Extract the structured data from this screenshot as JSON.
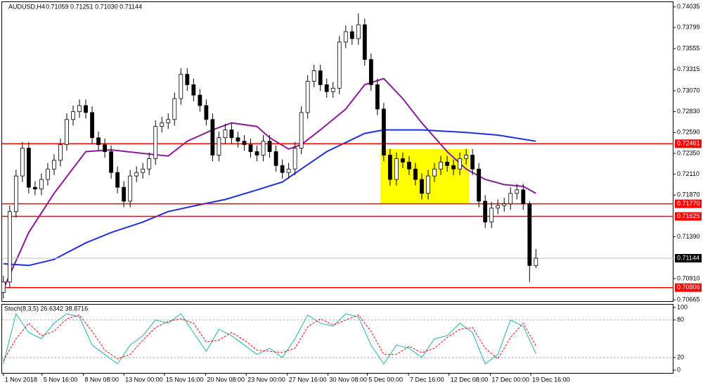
{
  "chart_data": {
    "type": "candlestick",
    "title": "AUDUSD,H4",
    "subtitle": "0.71059 0.71251 0.71030 0.71144",
    "open": [
      0.7075,
      0.7087,
      0.7168,
      0.7209,
      0.7241,
      0.7196,
      0.7194,
      0.7205,
      0.7217,
      0.7227,
      0.7245,
      0.7274,
      0.7283,
      0.729,
      0.7282,
      0.7253,
      0.7245,
      0.7237,
      0.7213,
      0.7196,
      0.718,
      0.7209,
      0.7213,
      0.7217,
      0.7229,
      0.7266,
      0.727,
      0.7274,
      0.7298,
      0.7326,
      0.7314,
      0.7302,
      0.729,
      0.7274,
      0.7233,
      0.7253,
      0.7262,
      0.7253,
      0.7249,
      0.7245,
      0.7237,
      0.7233,
      0.7249,
      0.7237,
      0.7221,
      0.7213,
      0.7217,
      0.7241,
      0.7282,
      0.7318,
      0.733,
      0.7314,
      0.7306,
      0.731,
      0.7363,
      0.7375,
      0.7367,
      0.7383,
      0.7343,
      0.7314,
      0.7286,
      0.7233,
      0.7205,
      0.7229,
      0.7225,
      0.7217,
      0.7205,
      0.7189,
      0.7209,
      0.7217,
      0.7225,
      0.7221,
      0.7217,
      0.7229,
      0.7233,
      0.7217,
      0.718,
      0.7156,
      0.7172,
      0.7175,
      0.7177,
      0.7189,
      0.7193,
      0.7177,
      0.71059
    ],
    "high": [
      0.7094,
      0.7175,
      0.7216,
      0.7248,
      0.7248,
      0.7203,
      0.7212,
      0.7224,
      0.7234,
      0.7252,
      0.7281,
      0.729,
      0.7297,
      0.7297,
      0.7289,
      0.726,
      0.7252,
      0.7244,
      0.722,
      0.7203,
      0.7216,
      0.722,
      0.7224,
      0.7236,
      0.7273,
      0.7277,
      0.7281,
      0.7305,
      0.7333,
      0.7333,
      0.7321,
      0.7309,
      0.7297,
      0.7281,
      0.726,
      0.7269,
      0.7269,
      0.726,
      0.7256,
      0.7252,
      0.7244,
      0.7256,
      0.7256,
      0.7244,
      0.7228,
      0.7224,
      0.7248,
      0.7289,
      0.7325,
      0.7337,
      0.7337,
      0.7321,
      0.7317,
      0.737,
      0.7382,
      0.7382,
      0.7396,
      0.739,
      0.735,
      0.7321,
      0.7293,
      0.724,
      0.7236,
      0.7236,
      0.7232,
      0.7224,
      0.7212,
      0.7216,
      0.7224,
      0.7232,
      0.7232,
      0.7228,
      0.7236,
      0.724,
      0.724,
      0.7224,
      0.7187,
      0.7179,
      0.7182,
      0.7184,
      0.7196,
      0.72,
      0.72,
      0.718,
      0.71251
    ],
    "low": [
      0.7068,
      0.708,
      0.7161,
      0.7202,
      0.7189,
      0.7187,
      0.7187,
      0.7198,
      0.721,
      0.722,
      0.7238,
      0.7267,
      0.7276,
      0.7275,
      0.7246,
      0.7238,
      0.723,
      0.7206,
      0.7189,
      0.7173,
      0.7173,
      0.7202,
      0.7206,
      0.721,
      0.7222,
      0.7259,
      0.7263,
      0.7267,
      0.7291,
      0.7307,
      0.7295,
      0.7283,
      0.7267,
      0.7226,
      0.7226,
      0.7246,
      0.7246,
      0.7242,
      0.7238,
      0.723,
      0.7226,
      0.7226,
      0.723,
      0.7214,
      0.7206,
      0.7206,
      0.721,
      0.7234,
      0.7275,
      0.7311,
      0.7307,
      0.7299,
      0.7299,
      0.7303,
      0.7356,
      0.736,
      0.736,
      0.7336,
      0.7307,
      0.7279,
      0.7226,
      0.7198,
      0.7198,
      0.7218,
      0.721,
      0.7198,
      0.7182,
      0.7182,
      0.7202,
      0.721,
      0.7214,
      0.721,
      0.721,
      0.7222,
      0.721,
      0.7173,
      0.7149,
      0.7149,
      0.7165,
      0.7168,
      0.717,
      0.7182,
      0.717,
      0.7087,
      0.7103
    ],
    "close": [
      0.7087,
      0.7168,
      0.7209,
      0.7241,
      0.7196,
      0.7194,
      0.7205,
      0.7217,
      0.7227,
      0.7245,
      0.7274,
      0.7283,
      0.729,
      0.7282,
      0.7253,
      0.7245,
      0.7237,
      0.7213,
      0.7196,
      0.718,
      0.7209,
      0.7213,
      0.7217,
      0.7229,
      0.7266,
      0.727,
      0.7274,
      0.7298,
      0.7326,
      0.7314,
      0.7302,
      0.729,
      0.7274,
      0.7233,
      0.7253,
      0.7262,
      0.7253,
      0.7249,
      0.7245,
      0.7237,
      0.7233,
      0.7249,
      0.7237,
      0.7221,
      0.7213,
      0.7217,
      0.7241,
      0.7282,
      0.7318,
      0.733,
      0.7314,
      0.7306,
      0.731,
      0.7363,
      0.7375,
      0.7367,
      0.7383,
      0.7343,
      0.7314,
      0.7286,
      0.7233,
      0.7205,
      0.7229,
      0.7225,
      0.7217,
      0.7205,
      0.7189,
      0.7209,
      0.7217,
      0.7225,
      0.7221,
      0.7217,
      0.7229,
      0.7233,
      0.7217,
      0.718,
      0.7156,
      0.7172,
      0.7175,
      0.7177,
      0.7189,
      0.7193,
      0.7177,
      0.7106,
      0.71144
    ],
    "up_color": "#ffffff",
    "down_color": "#000000",
    "candle_color": "#000000",
    "xlim": [
      -0.2,
      105.7
    ],
    "xticks": [
      {
        "value": 0,
        "label": "1 Nov 2018"
      },
      {
        "value": 6.1,
        "label": "5 Nov 16:00"
      },
      {
        "value": 12.6,
        "label": "8 Nov 08:00"
      },
      {
        "value": 19,
        "label": "13 Nov 00:00"
      },
      {
        "value": 25.4,
        "label": "15 Nov 16:00"
      },
      {
        "value": 31.9,
        "label": "20 Nov 08:00"
      },
      {
        "value": 38.3,
        "label": "23 Nov 00:00"
      },
      {
        "value": 44.8,
        "label": "27 Nov 16:00"
      },
      {
        "value": 51.2,
        "label": "30 Nov 08:00"
      },
      {
        "value": 57.4,
        "label": "5 Dec 00:00"
      },
      {
        "value": 63.9,
        "label": "7 Dec 16:00"
      },
      {
        "value": 70.3,
        "label": "12 Dec 08:00"
      },
      {
        "value": 76.8,
        "label": "17 Dec 00:00"
      },
      {
        "value": 83.2,
        "label": "19 Dec 16:00"
      }
    ],
    "ylim": [
      0.7065,
      0.7409
    ],
    "yticks": [
      0.74035,
      0.73799,
      0.73555,
      0.73315,
      {
        "value": 0.7307,
        "label": "0.73070"
      },
      {
        "value": 0.7283,
        "label": "0.72830"
      },
      {
        "value": 0.7259,
        "label": "0.72590"
      },
      {
        "value": 0.7235,
        "label": "0.72350"
      },
      {
        "value": 0.7211,
        "label": "0.72110"
      },
      {
        "value": 0.7187,
        "label": "0.71870"
      },
      {
        "value": 0.7139,
        "label": "0.71390"
      },
      {
        "value": 0.7091,
        "label": "0.70910"
      },
      0.70665
    ],
    "level_color": "#ff0000",
    "current_color": "#c0c0c0",
    "levels": [
      0.72461,
      {
        "value": 0.7177,
        "label": "0.71770"
      },
      0.71625,
      0.70806
    ],
    "zone": {
      "x": [
        59.5,
        73.5
      ],
      "y": [
        0.7177,
        0.724
      ],
      "color": "#ffff00"
    },
    "lines": [
      {
        "color": "#8b1a9a",
        "x": [
          0,
          4,
          8,
          13,
          17,
          22,
          26,
          29,
          33,
          36,
          40,
          42,
          45,
          47,
          50,
          54,
          57,
          60,
          63,
          66,
          70,
          73,
          76,
          79,
          82,
          84
        ],
        "values": [
          0.7079,
          0.7144,
          0.7189,
          0.7237,
          0.7239,
          0.7235,
          0.7232,
          0.7249,
          0.7262,
          0.727,
          0.7266,
          0.7253,
          0.724,
          0.7245,
          0.7262,
          0.7286,
          0.7314,
          0.7321,
          0.7298,
          0.727,
          0.7237,
          0.7217,
          0.7205,
          0.7199,
          0.7197,
          0.7189
        ]
      },
      {
        "color": "#1f2fe0",
        "x": [
          0,
          4,
          8,
          13,
          17,
          22,
          26,
          31,
          35,
          40,
          44,
          47,
          51,
          57,
          60,
          66,
          73,
          78,
          84
        ],
        "values": [
          0.7108,
          0.7106,
          0.7113,
          0.7132,
          0.7144,
          0.7156,
          0.7168,
          0.7176,
          0.7182,
          0.7193,
          0.7202,
          0.7217,
          0.7237,
          0.7258,
          0.7262,
          0.7262,
          0.7259,
          0.7256,
          0.7249
        ]
      }
    ],
    "indicator": {
      "type": "line",
      "title": "Stoch(8,3,5) 26.6342 38.8716",
      "ylim": [
        0,
        100
      ],
      "yticks": [
        100,
        80,
        20,
        0
      ],
      "guides": [
        80,
        20
      ],
      "series": [
        {
          "color": "#20b2aa",
          "dashed": false,
          "x": [
            0,
            2,
            4,
            6,
            8,
            10,
            12,
            14,
            16,
            18,
            20,
            22,
            24,
            26,
            28,
            30,
            32,
            34,
            36,
            38,
            40,
            42,
            44,
            46,
            48,
            50,
            52,
            54,
            56,
            58,
            60,
            62,
            64,
            66,
            68,
            70,
            72,
            74,
            76,
            78,
            80,
            82,
            84
          ],
          "values": [
            10,
            90,
            60,
            50,
            75,
            90,
            85,
            40,
            25,
            10,
            40,
            55,
            80,
            75,
            90,
            60,
            30,
            65,
            55,
            40,
            25,
            35,
            20,
            50,
            88,
            75,
            70,
            90,
            85,
            40,
            10,
            40,
            35,
            20,
            50,
            55,
            75,
            60,
            10,
            25,
            80,
            70,
            26.6342
          ]
        },
        {
          "color": "#ff0000",
          "dashed": true,
          "x": [
            0,
            2,
            4,
            6,
            8,
            10,
            12,
            14,
            16,
            18,
            20,
            22,
            24,
            26,
            28,
            30,
            32,
            34,
            36,
            38,
            40,
            42,
            44,
            46,
            48,
            50,
            52,
            54,
            56,
            58,
            60,
            62,
            64,
            66,
            68,
            70,
            72,
            74,
            76,
            78,
            80,
            82,
            84
          ],
          "values": [
            15,
            50,
            75,
            55,
            62,
            82,
            88,
            62,
            32,
            18,
            25,
            48,
            68,
            78,
            82,
            75,
            45,
            48,
            60,
            48,
            32,
            30,
            28,
            35,
            69,
            82,
            72,
            80,
            88,
            62,
            25,
            25,
            38,
            28,
            35,
            52,
            65,
            68,
            35,
            18,
            52,
            75,
            38.8716
          ]
        }
      ]
    }
  }
}
